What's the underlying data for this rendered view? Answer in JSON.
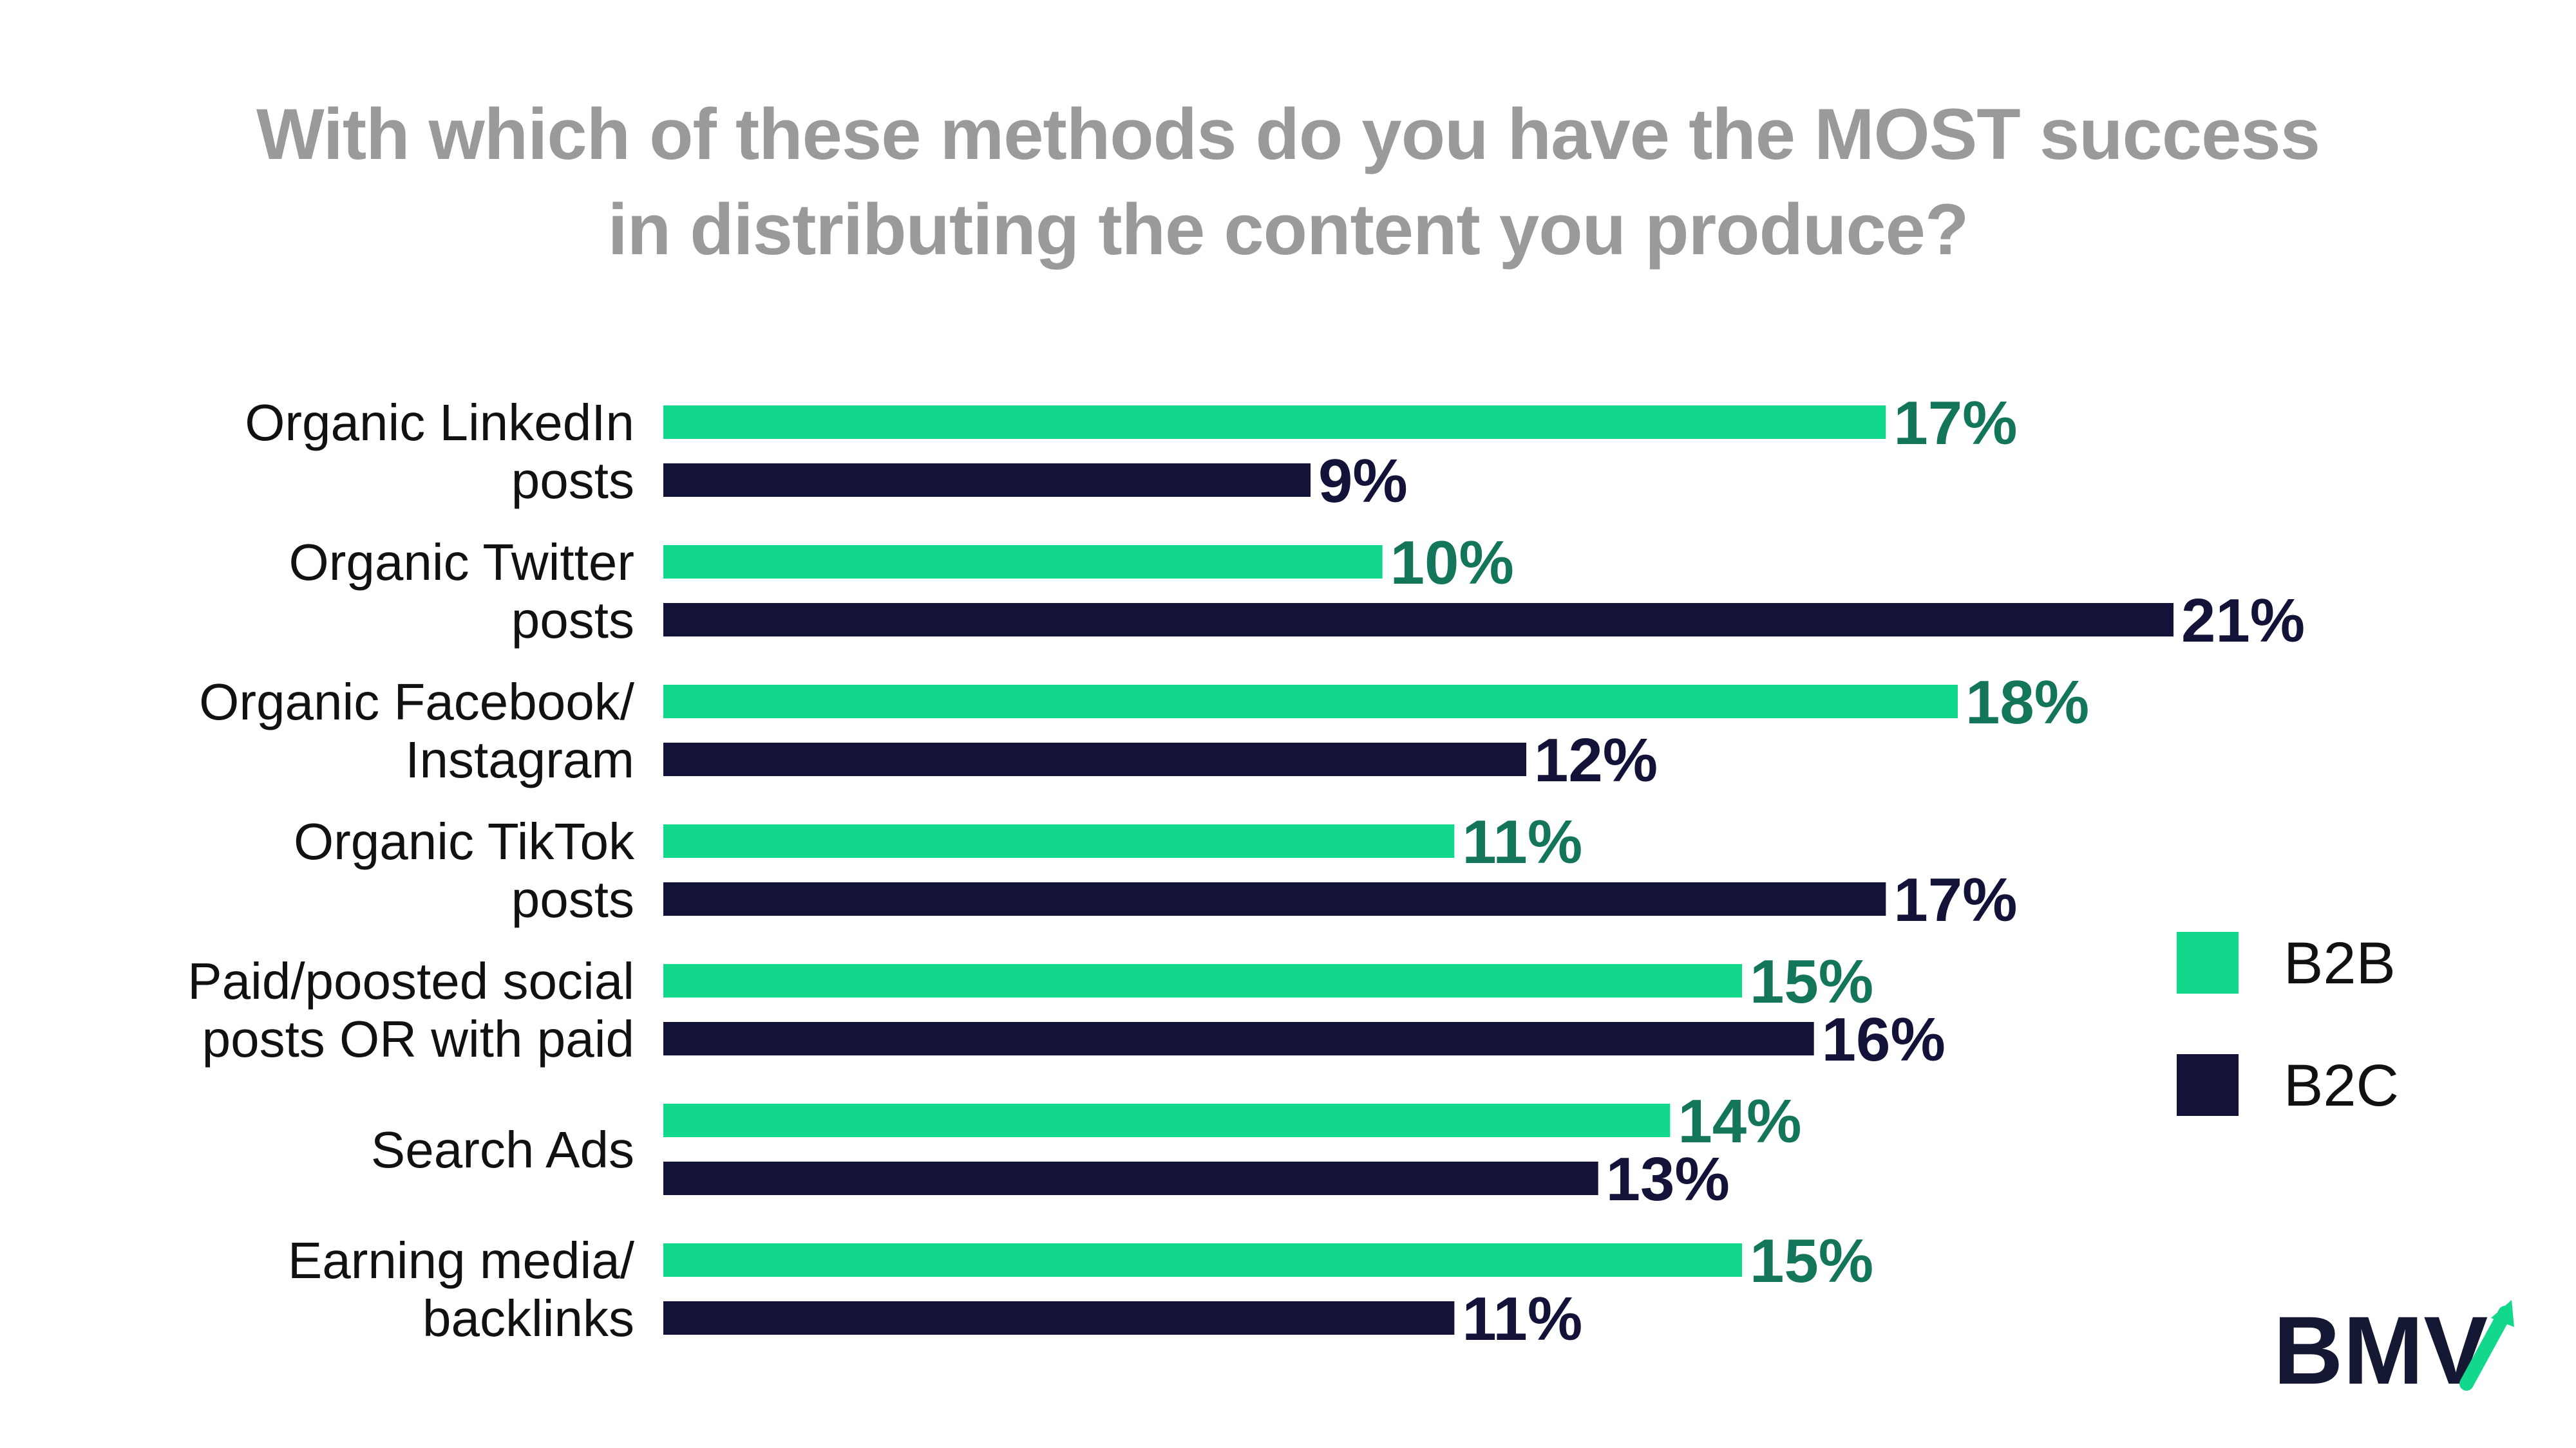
{
  "title_line1": "With which of these methods do you have the MOST success",
  "title_line2": "in distributing the content you produce?",
  "colors": {
    "b2b": "#12d88c",
    "b2b_label": "#13755a",
    "b2c": "#13133a",
    "title": "#9a9a9a"
  },
  "legend": [
    {
      "name": "B2B",
      "color_key": "b2b"
    },
    {
      "name": "B2C",
      "color_key": "b2c"
    }
  ],
  "logo": {
    "text": "BMV",
    "icon": "upward-arrow-check-icon"
  },
  "chart_data": {
    "type": "bar",
    "orientation": "horizontal",
    "title": "With which of these methods do you have the MOST success in distributing the content you produce?",
    "categories": [
      [
        "Organic LinkedIn",
        "posts"
      ],
      [
        "Organic Twitter",
        "posts"
      ],
      [
        "Organic Facebook/",
        "Instagram"
      ],
      [
        "Organic TikTok",
        "posts"
      ],
      [
        "Paid/poosted social",
        "posts OR with paid"
      ],
      [
        "Search Ads"
      ],
      [
        "Earning media/",
        "backlinks"
      ]
    ],
    "series": [
      {
        "name": "B2B",
        "values": [
          17,
          10,
          18,
          11,
          15,
          14,
          15
        ],
        "labels": [
          "17%",
          "10%",
          "18%",
          "11%",
          "15%",
          "14%",
          "15%"
        ]
      },
      {
        "name": "B2C",
        "values": [
          9,
          21,
          12,
          17,
          16,
          13,
          11
        ],
        "labels": [
          "9%",
          "21%",
          "12%",
          "17%",
          "16%",
          "13%",
          "11%"
        ]
      }
    ],
    "xlim": [
      0,
      21
    ],
    "grid": false,
    "axes_visible": false,
    "legend_position": "right"
  }
}
